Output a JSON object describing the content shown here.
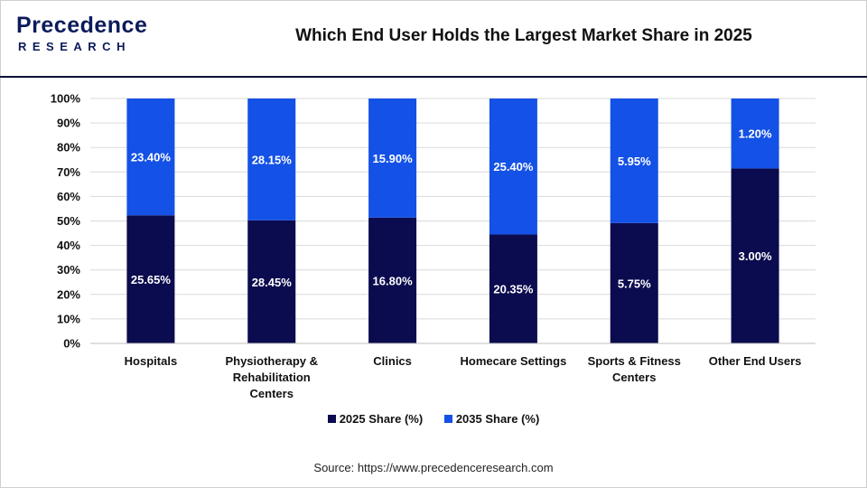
{
  "brand": {
    "logo_main": "Precedence",
    "logo_sub": "RESEARCH"
  },
  "title": "Which End User Holds the Largest Market Share in 2025",
  "source": "Source: https://www.precedenceresearch.com",
  "colors": {
    "series_2025": "#0b0b4f",
    "series_2035": "#1451e6",
    "grid": "#d9d9d9",
    "accent": "#ff7a00"
  },
  "chart_data": {
    "type": "bar",
    "stacked": true,
    "percent_stacked": true,
    "categories": [
      "Hospitals",
      "Physiotherapy & Rehabilitation Centers",
      "Clinics",
      "Homecare Settings",
      "Sports & Fitness Centers",
      "Other End Users"
    ],
    "category_lines": [
      [
        "Hospitals"
      ],
      [
        "Physiotherapy &",
        "Rehabilitation",
        "Centers"
      ],
      [
        "Clinics"
      ],
      [
        "Homecare Settings"
      ],
      [
        "Sports & Fitness",
        "Centers"
      ],
      [
        "Other End Users"
      ]
    ],
    "series": [
      {
        "name": "2025 Share (%)",
        "values": [
          25.65,
          28.45,
          16.8,
          20.35,
          5.75,
          3.0
        ],
        "labels": [
          "25.65%",
          "28.45%",
          "16.80%",
          "20.35%",
          "5.75%",
          "3.00%"
        ]
      },
      {
        "name": "2035 Share (%)",
        "values": [
          23.4,
          28.15,
          15.9,
          25.4,
          5.95,
          1.2
        ],
        "labels": [
          "23.40%",
          "28.15%",
          "15.90%",
          "25.40%",
          "5.95%",
          "1.20%"
        ]
      }
    ],
    "y_ticks": [
      "0%",
      "10%",
      "20%",
      "30%",
      "40%",
      "50%",
      "60%",
      "70%",
      "80%",
      "90%",
      "100%"
    ],
    "ylim": [
      0,
      100
    ],
    "grid": true,
    "legend_position": "bottom"
  }
}
